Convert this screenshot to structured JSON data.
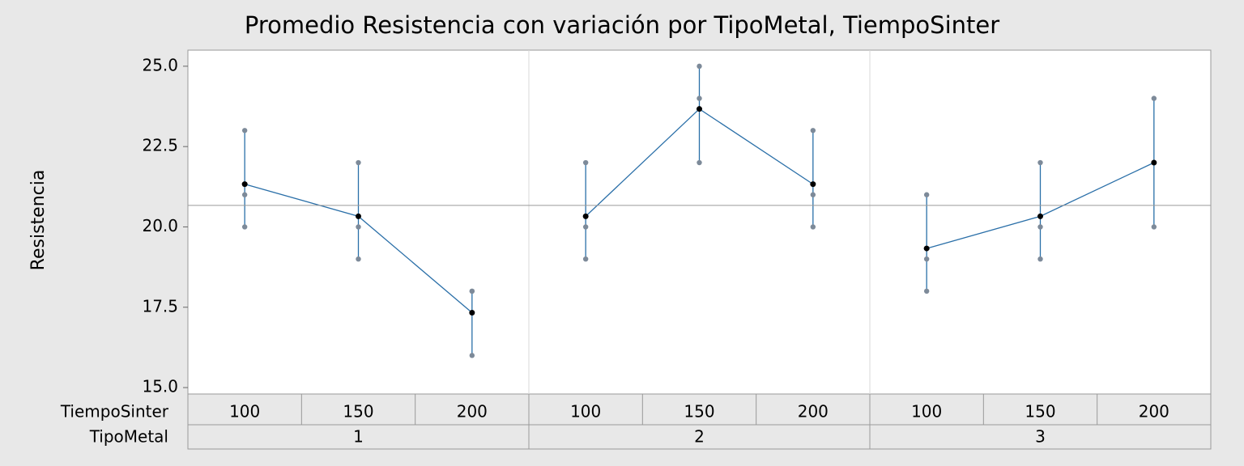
{
  "chart_data": {
    "type": "interval",
    "title": "Promedio Resistencia con variación por TipoMetal, TiempoSinter",
    "y_label": "Resistencia",
    "x_row_labels": [
      "TiempoSinter",
      "TipoMetal"
    ],
    "ylim": [
      14.8,
      25.5
    ],
    "yticks": [
      {
        "value": 15,
        "label": "15.0"
      },
      {
        "value": 17.5,
        "label": "17.5"
      },
      {
        "value": 20,
        "label": "20.0"
      },
      {
        "value": 22.5,
        "label": "22.5"
      },
      {
        "value": 25,
        "label": "25.0"
      }
    ],
    "reference_line": 20.67,
    "line_color": "#2a6fa8",
    "mean_color": "#000000",
    "point_color": "#7d8a99",
    "groups": [
      {
        "name": "1",
        "categories": [
          "100",
          "150",
          "200"
        ],
        "means": [
          21.33,
          20.33,
          17.33
        ],
        "points": [
          [
            20,
            21,
            23
          ],
          [
            19,
            20,
            22
          ],
          [
            16,
            18,
            18
          ]
        ]
      },
      {
        "name": "2",
        "categories": [
          "100",
          "150",
          "200"
        ],
        "means": [
          20.33,
          23.67,
          21.33
        ],
        "points": [
          [
            19,
            20,
            22
          ],
          [
            22,
            24,
            25
          ],
          [
            20,
            21,
            23
          ]
        ]
      },
      {
        "name": "3",
        "categories": [
          "100",
          "150",
          "200"
        ],
        "means": [
          19.33,
          20.33,
          22
        ],
        "points": [
          [
            18,
            19,
            21
          ],
          [
            19,
            20,
            22
          ],
          [
            20,
            22,
            24
          ]
        ]
      }
    ]
  }
}
